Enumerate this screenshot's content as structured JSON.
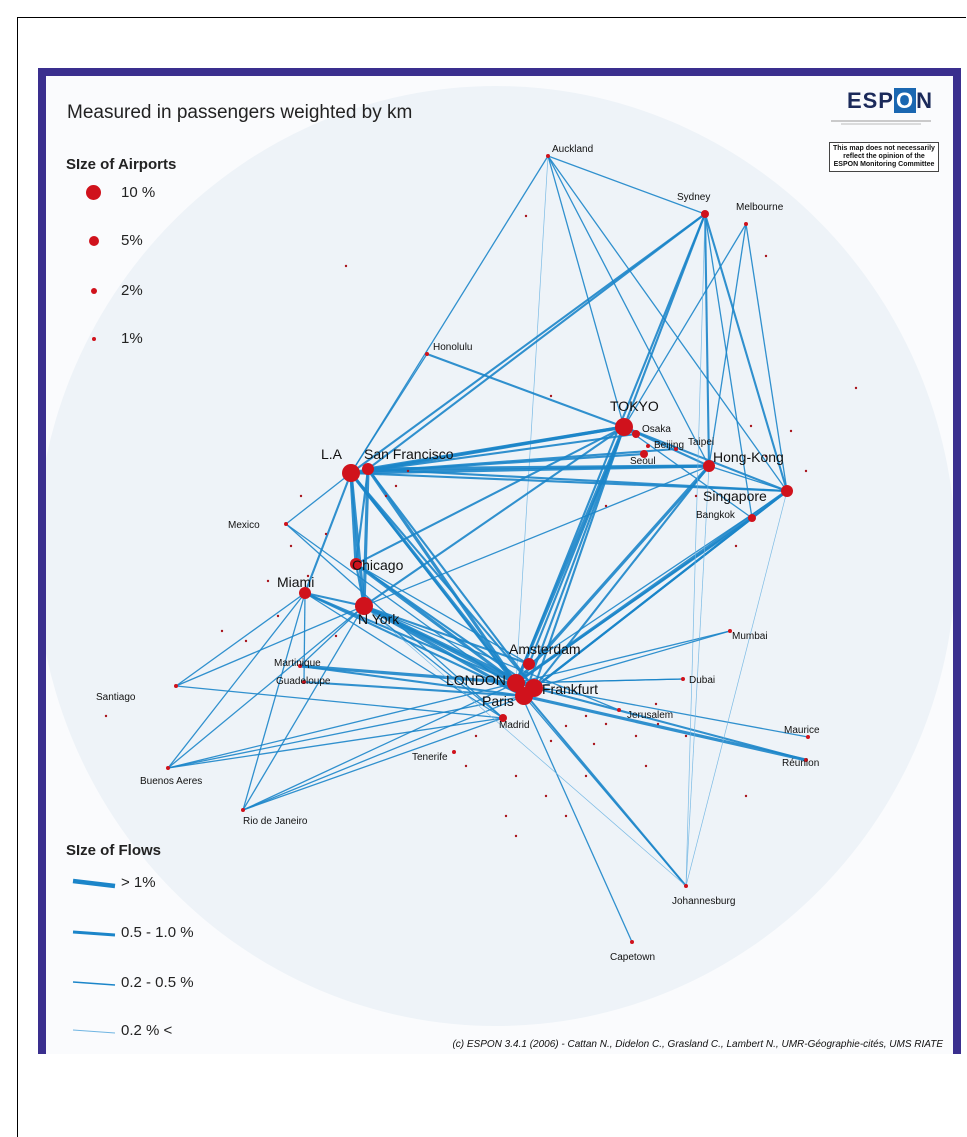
{
  "map": {
    "title": "Measured in passengers weighted by km",
    "logo": "ESPON",
    "disclaimer": "This map does not necessarily reflect the opinion of the ESPON Monitoring Committee",
    "credit": "(c) ESPON 3.4.1 (2006) - Cattan N., Didelon C., Grasland C., Lambert N., UMR-Géographie-cités, UMS RIATE",
    "colors": {
      "flow": "#1b85c9",
      "airport": "#d0121c",
      "frame": "#3a2f8e",
      "background": "#fafbfd"
    }
  },
  "airport_legend": {
    "title": "SIze of Airports",
    "items": [
      {
        "label": "10 %",
        "share": 10
      },
      {
        "label": "5%",
        "share": 5
      },
      {
        "label": "2%",
        "share": 2
      },
      {
        "label": "1%",
        "share": 1
      }
    ]
  },
  "flow_legend": {
    "title": "SIze of Flows",
    "items": [
      {
        "label": "> 1%",
        "class": 4
      },
      {
        "label": "0.5 - 1.0 %",
        "class": 3
      },
      {
        "label": "0.2 - 0.5 %",
        "class": 2
      },
      {
        "label": "0.2 % <",
        "class": 1
      }
    ]
  },
  "cities": [
    {
      "id": "auckland",
      "label": "Auckland",
      "size": 1
    },
    {
      "id": "sydney",
      "label": "Sydney",
      "size": 2
    },
    {
      "id": "melbourne",
      "label": "Melbourne",
      "size": 1
    },
    {
      "id": "honolulu",
      "label": "Honolulu",
      "size": 1
    },
    {
      "id": "tokyo",
      "label": "TOKYO",
      "size": 4,
      "big": true
    },
    {
      "id": "osaka",
      "label": "Osaka",
      "size": 2
    },
    {
      "id": "taipei",
      "label": "Taipei",
      "size": 1
    },
    {
      "id": "seoul",
      "label": "Seoul",
      "size": 2
    },
    {
      "id": "beijing",
      "label": "Beijing",
      "size": 1
    },
    {
      "id": "hongkong",
      "label": "Hong-Kong",
      "size": 3,
      "big": true
    },
    {
      "id": "singapore",
      "label": "Singapore",
      "size": 3,
      "big": true
    },
    {
      "id": "bangkok",
      "label": "Bangkok",
      "size": 2
    },
    {
      "id": "la",
      "label": "L.A",
      "size": 4,
      "big": true
    },
    {
      "id": "sanfrancisco",
      "label": "San Francisco",
      "size": 3,
      "big": true
    },
    {
      "id": "mexico",
      "label": "Mexico",
      "size": 1
    },
    {
      "id": "chicago",
      "label": "Chicago",
      "size": 3,
      "big": true
    },
    {
      "id": "miami",
      "label": "Miami",
      "size": 3,
      "big": true
    },
    {
      "id": "nyork",
      "label": "N York",
      "size": 4,
      "big": true
    },
    {
      "id": "martinique",
      "label": "Martinique",
      "size": 1
    },
    {
      "id": "guadeloupe",
      "label": "Guadeloupe",
      "size": 1
    },
    {
      "id": "santiago",
      "label": "Santiago",
      "size": 1
    },
    {
      "id": "buenosaires",
      "label": "Buenos Aeres",
      "size": 1
    },
    {
      "id": "rio",
      "label": "Rio de Janeiro",
      "size": 1
    },
    {
      "id": "amsterdam",
      "label": "Amsterdam",
      "size": 3,
      "big": true
    },
    {
      "id": "london",
      "label": "LONDON",
      "size": 4,
      "big": true
    },
    {
      "id": "frankfurt",
      "label": "Frankfurt",
      "size": 4,
      "big": true
    },
    {
      "id": "paris",
      "label": "Paris",
      "size": 4,
      "big": true
    },
    {
      "id": "madrid",
      "label": "Madrid",
      "size": 2
    },
    {
      "id": "tenerife",
      "label": "Tenerife",
      "size": 1
    },
    {
      "id": "jerusalem",
      "label": "Jerusalem",
      "size": 1
    },
    {
      "id": "dubai",
      "label": "Dubai",
      "size": 1
    },
    {
      "id": "mumbai",
      "label": "Mumbai",
      "size": 1
    },
    {
      "id": "maurice",
      "label": "Maurice",
      "size": 1
    },
    {
      "id": "reunion",
      "label": "Réunion",
      "size": 1
    },
    {
      "id": "johannesburg",
      "label": "Johannesburg",
      "size": 1
    },
    {
      "id": "capetown",
      "label": "Capetown",
      "size": 1
    }
  ],
  "flows": [
    [
      "london",
      "nyork",
      4
    ],
    [
      "london",
      "la",
      4
    ],
    [
      "london",
      "sanfrancisco",
      4
    ],
    [
      "london",
      "chicago",
      4
    ],
    [
      "london",
      "miami",
      3
    ],
    [
      "london",
      "tokyo",
      4
    ],
    [
      "london",
      "hongkong",
      4
    ],
    [
      "london",
      "singapore",
      4
    ],
    [
      "london",
      "bangkok",
      3
    ],
    [
      "london",
      "sydney",
      3
    ],
    [
      "london",
      "johannesburg",
      3
    ],
    [
      "london",
      "reunion",
      3
    ],
    [
      "london",
      "martinique",
      4
    ],
    [
      "london",
      "mumbai",
      2
    ],
    [
      "london",
      "dubai",
      2
    ],
    [
      "london",
      "capetown",
      2
    ],
    [
      "london",
      "buenosaires",
      2
    ],
    [
      "london",
      "rio",
      2
    ],
    [
      "london",
      "maurice",
      2
    ],
    [
      "london",
      "auckland",
      1
    ],
    [
      "paris",
      "nyork",
      4
    ],
    [
      "paris",
      "la",
      3
    ],
    [
      "paris",
      "tokyo",
      3
    ],
    [
      "paris",
      "singapore",
      3
    ],
    [
      "paris",
      "reunion",
      4
    ],
    [
      "paris",
      "martinique",
      3
    ],
    [
      "paris",
      "guadeloupe",
      3
    ],
    [
      "paris",
      "johannesburg",
      2
    ],
    [
      "paris",
      "rio",
      2
    ],
    [
      "paris",
      "buenosaires",
      2
    ],
    [
      "paris",
      "mexico",
      2
    ],
    [
      "paris",
      "miami",
      3
    ],
    [
      "frankfurt",
      "nyork",
      4
    ],
    [
      "frankfurt",
      "tokyo",
      3
    ],
    [
      "frankfurt",
      "singapore",
      3
    ],
    [
      "frankfurt",
      "chicago",
      3
    ],
    [
      "frankfurt",
      "la",
      3
    ],
    [
      "frankfurt",
      "hongkong",
      3
    ],
    [
      "frankfurt",
      "bangkok",
      3
    ],
    [
      "frankfurt",
      "sanfrancisco",
      3
    ],
    [
      "amsterdam",
      "nyork",
      3
    ],
    [
      "amsterdam",
      "tokyo",
      3
    ],
    [
      "amsterdam",
      "singapore",
      2
    ],
    [
      "amsterdam",
      "chicago",
      2
    ],
    [
      "madrid",
      "buenosaires",
      2
    ],
    [
      "madrid",
      "rio",
      2
    ],
    [
      "madrid",
      "mexico",
      2
    ],
    [
      "madrid",
      "santiago",
      2
    ],
    [
      "madrid",
      "nyork",
      2
    ],
    [
      "madrid",
      "miami",
      2
    ],
    [
      "la",
      "tokyo",
      4
    ],
    [
      "sanfrancisco",
      "tokyo",
      4
    ],
    [
      "la",
      "hongkong",
      4
    ],
    [
      "sanfrancisco",
      "hongkong",
      4
    ],
    [
      "la",
      "sydney",
      3
    ],
    [
      "sanfrancisco",
      "sydney",
      3
    ],
    [
      "la",
      "seoul",
      3
    ],
    [
      "la",
      "taipei",
      3
    ],
    [
      "la",
      "osaka",
      3
    ],
    [
      "la",
      "singapore",
      3
    ],
    [
      "sanfrancisco",
      "singapore",
      3
    ],
    [
      "la",
      "auckland",
      2
    ],
    [
      "la",
      "honolulu",
      2
    ],
    [
      "honolulu",
      "tokyo",
      3
    ],
    [
      "chicago",
      "tokyo",
      3
    ],
    [
      "nyork",
      "tokyo",
      3
    ],
    [
      "nyork",
      "hongkong",
      2
    ],
    [
      "la",
      "nyork",
      4
    ],
    [
      "la",
      "chicago",
      4
    ],
    [
      "sanfrancisco",
      "nyork",
      4
    ],
    [
      "sanfrancisco",
      "chicago",
      3
    ],
    [
      "la",
      "miami",
      3
    ],
    [
      "chicago",
      "nyork",
      3
    ],
    [
      "miami",
      "nyork",
      3
    ],
    [
      "la",
      "mexico",
      2
    ],
    [
      "nyork",
      "santiago",
      2
    ],
    [
      "miami",
      "santiago",
      2
    ],
    [
      "miami",
      "buenosaires",
      2
    ],
    [
      "nyork",
      "buenosaires",
      2
    ],
    [
      "nyork",
      "rio",
      2
    ],
    [
      "miami",
      "rio",
      2
    ],
    [
      "nyork",
      "martinique",
      2
    ],
    [
      "miami",
      "guadeloupe",
      2
    ],
    [
      "tokyo",
      "sydney",
      3
    ],
    [
      "hongkong",
      "sydney",
      3
    ],
    [
      "singapore",
      "sydney",
      3
    ],
    [
      "singapore",
      "melbourne",
      2
    ],
    [
      "hongkong",
      "melbourne",
      2
    ],
    [
      "tokyo",
      "melbourne",
      2
    ],
    [
      "tokyo",
      "auckland",
      2
    ],
    [
      "singapore",
      "auckland",
      2
    ],
    [
      "hongkong",
      "auckland",
      2
    ],
    [
      "bangkok",
      "sydney",
      2
    ],
    [
      "tokyo",
      "singapore",
      3
    ],
    [
      "tokyo",
      "hongkong",
      3
    ],
    [
      "tokyo",
      "bangkok",
      2
    ],
    [
      "hongkong",
      "singapore",
      2
    ],
    [
      "sydney",
      "johannesburg",
      1
    ],
    [
      "hongkong",
      "johannesburg",
      1
    ],
    [
      "singapore",
      "johannesburg",
      1
    ],
    [
      "nyork",
      "johannesburg",
      1
    ],
    [
      "jerusalem",
      "nyork",
      2
    ],
    [
      "dubai",
      "london",
      2
    ],
    [
      "mumbai",
      "frankfurt",
      2
    ],
    [
      "sydney",
      "auckland",
      2
    ]
  ]
}
